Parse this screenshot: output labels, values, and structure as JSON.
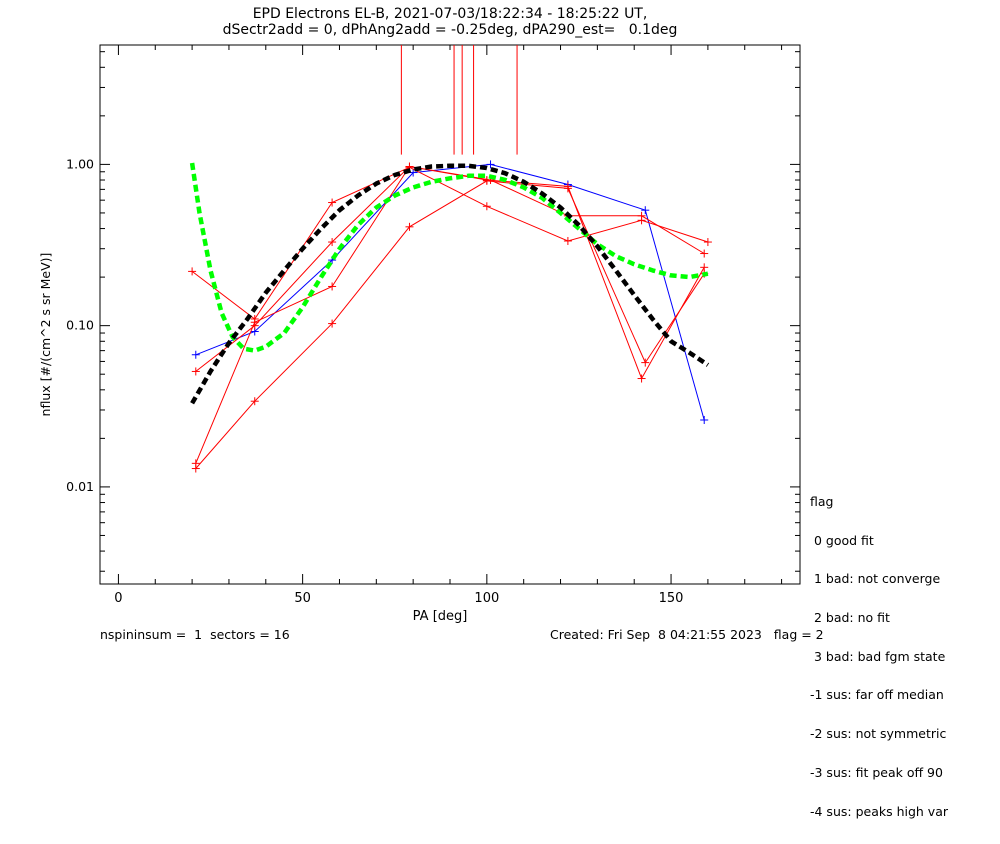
{
  "title": {
    "line1": "EPD Electrons EL-B, 2021-07-03/18:22:34 - 18:25:22 UT,",
    "line2": "dSectr2add = 0, dPhAng2add = -0.25deg, dPA290_est=   0.1deg"
  },
  "colors": {
    "red": "#ff0000",
    "blue": "#0000ff",
    "green_fit": "#00ff00",
    "black_fit": "#000000",
    "axes": "#000000"
  },
  "legend": {
    "title": "flag",
    "items": [
      " 0 good fit",
      " 1 bad: not converge",
      " 2 bad: no fit",
      " 3 bad: bad fgm state",
      "-1 sus: far off median",
      "-2 sus: not symmetric",
      "-3 sus: fit peak off 90",
      "-4 sus: peaks high var"
    ]
  },
  "footer": {
    "left": "nspininsum =  1  sectors = 16",
    "right": "Created: Fri Sep  8 04:21:55 2023   flag = 2"
  },
  "chart_data": {
    "type": "line",
    "xlabel": "PA [deg]",
    "ylabel": "nflux [#/(cm^2 s sr MeV)]",
    "xlim": [
      -5,
      185
    ],
    "ylim": [
      0.0025,
      5.5
    ],
    "yscale": "log",
    "xticks": [
      0,
      50,
      100,
      150
    ],
    "xtick_labels": [
      "0",
      "50",
      "100",
      "150"
    ],
    "yticks": [
      0.01,
      0.1,
      1.0
    ],
    "ytick_labels": [
      "0.01",
      "0.10",
      "1.00"
    ],
    "grid": false,
    "vertical_markers": {
      "x": [
        76.8,
        91.1,
        93.3,
        96.4,
        108.2
      ],
      "y_from": 1.15,
      "color": "#ff0000"
    },
    "series": [
      {
        "color": "#0000ff",
        "style": "line-plus",
        "x": [
          21,
          37,
          58,
          80,
          101,
          122,
          143,
          159
        ],
        "y": [
          0.066,
          0.092,
          0.255,
          0.89,
          1.0,
          0.75,
          0.52,
          0.026
        ]
      },
      {
        "color": "#ff0000",
        "style": "line-plus",
        "x": [
          20,
          37,
          58,
          79,
          100,
          122,
          142,
          160
        ],
        "y": [
          0.217,
          0.11,
          0.58,
          0.96,
          0.55,
          0.335,
          0.45,
          0.33
        ]
      },
      {
        "color": "#ff0000",
        "style": "line-plus",
        "x": [
          21,
          37,
          58,
          79,
          101,
          122,
          142,
          159
        ],
        "y": [
          0.052,
          0.1,
          0.33,
          0.97,
          0.8,
          0.48,
          0.48,
          0.28
        ]
      },
      {
        "color": "#ff0000",
        "style": "line-plus",
        "x": [
          21,
          37,
          58,
          79,
          100,
          122,
          142,
          159
        ],
        "y": [
          0.014,
          0.105,
          0.175,
          0.97,
          0.8,
          0.73,
          0.047,
          0.23
        ]
      },
      {
        "color": "#ff0000",
        "style": "line-plus",
        "x": [
          21,
          37,
          58,
          79,
          100,
          122,
          143,
          159
        ],
        "y": [
          0.013,
          0.034,
          0.103,
          0.41,
          0.79,
          0.71,
          0.059,
          0.21
        ]
      },
      {
        "color": "#00ff00",
        "style": "dashed-fit",
        "x": [
          20,
          22,
          25,
          28,
          31,
          34,
          37,
          40,
          45,
          50,
          55,
          60,
          65,
          70,
          75,
          80,
          85,
          90,
          95,
          100,
          105,
          110,
          115,
          120,
          125,
          130,
          135,
          140,
          145,
          150,
          155,
          160
        ],
        "y": [
          1.02,
          0.5,
          0.22,
          0.12,
          0.085,
          0.072,
          0.07,
          0.074,
          0.09,
          0.13,
          0.2,
          0.3,
          0.42,
          0.54,
          0.64,
          0.72,
          0.78,
          0.82,
          0.85,
          0.85,
          0.8,
          0.72,
          0.62,
          0.5,
          0.4,
          0.32,
          0.27,
          0.24,
          0.22,
          0.205,
          0.2,
          0.21
        ]
      },
      {
        "color": "#000000",
        "style": "dashed-fit",
        "x": [
          20,
          25,
          30,
          35,
          40,
          45,
          50,
          55,
          60,
          65,
          70,
          75,
          80,
          85,
          90,
          95,
          100,
          105,
          110,
          115,
          120,
          125,
          130,
          135,
          140,
          145,
          150,
          155,
          160
        ],
        "y": [
          0.033,
          0.052,
          0.078,
          0.11,
          0.16,
          0.22,
          0.3,
          0.4,
          0.52,
          0.64,
          0.76,
          0.86,
          0.93,
          0.97,
          0.98,
          0.98,
          0.95,
          0.88,
          0.78,
          0.66,
          0.54,
          0.42,
          0.31,
          0.22,
          0.155,
          0.11,
          0.08,
          0.068,
          0.057
        ]
      }
    ]
  }
}
